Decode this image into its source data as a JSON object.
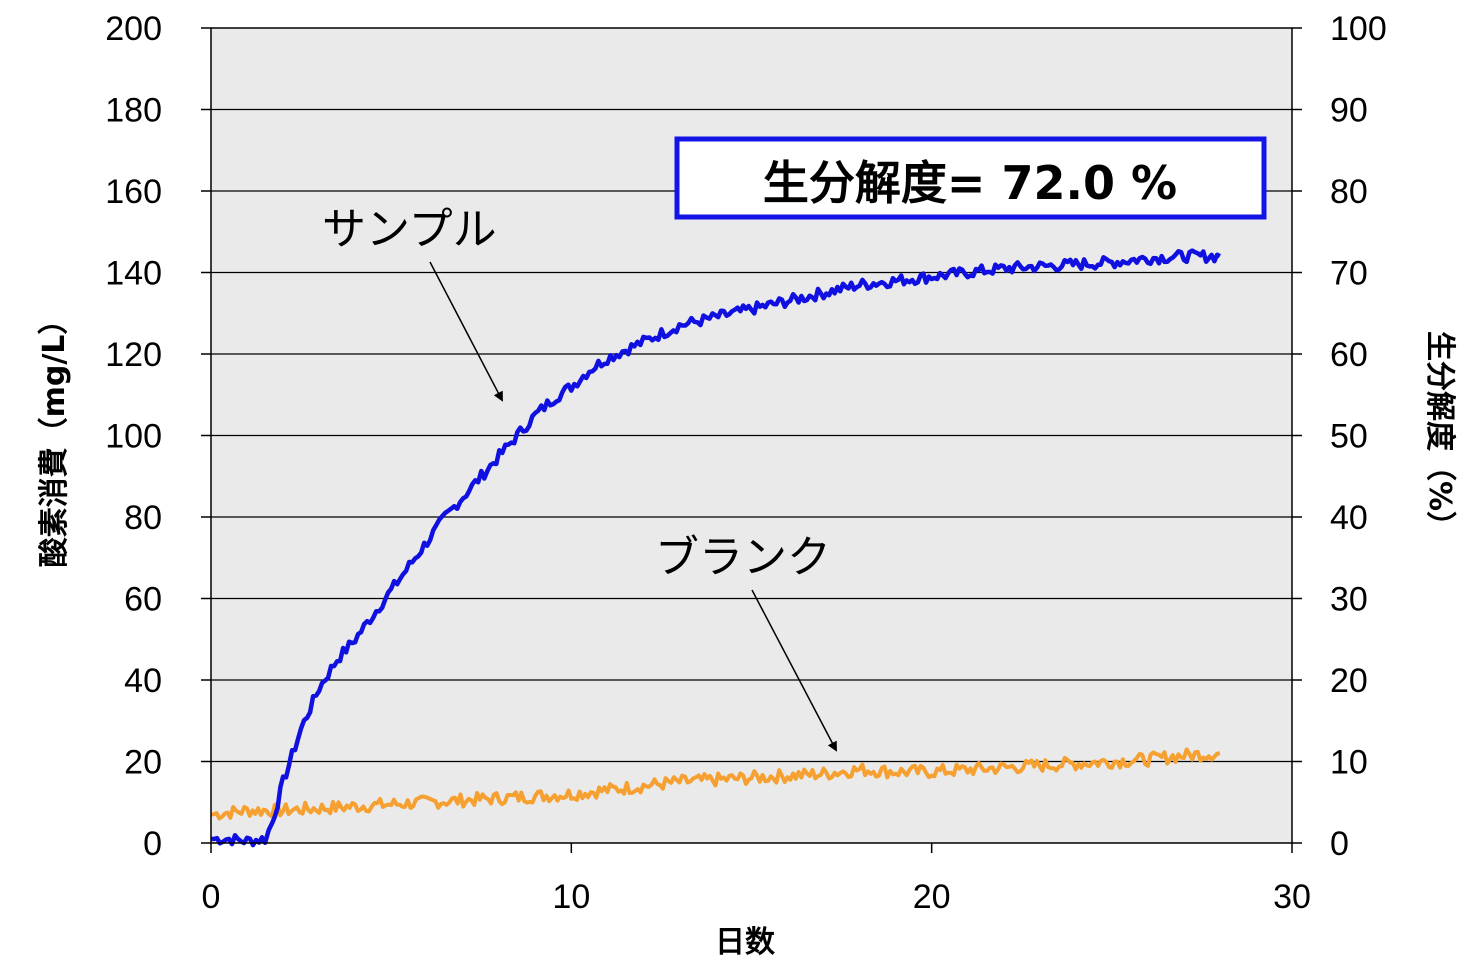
{
  "chart_data": {
    "type": "line",
    "xlabel": "日数",
    "ylabel": "酸素消費（mg/L）",
    "y2label": "生分解度（%）",
    "xlim": [
      0,
      30
    ],
    "ylim": [
      0,
      200
    ],
    "y2lim": [
      0,
      100
    ],
    "x_ticks": [
      0,
      10,
      20,
      30
    ],
    "y_ticks": [
      0,
      20,
      40,
      60,
      80,
      100,
      120,
      140,
      160,
      180,
      200
    ],
    "y2_ticks": [
      0,
      10,
      20,
      30,
      40,
      50,
      60,
      70,
      80,
      90,
      100
    ],
    "grid": "horizontal",
    "plot_background": "#eaeaea",
    "result_box": "生分解度= 72.0 %",
    "result_box_color": "#1414e6",
    "series": [
      {
        "name": "サンプル",
        "color": "#1010e0",
        "x": [
          0,
          0.5,
          1.0,
          1.5,
          1.7,
          2.0,
          2.5,
          3.0,
          3.5,
          4.0,
          4.5,
          5.0,
          5.5,
          6.0,
          6.5,
          7.0,
          7.5,
          8.0,
          8.5,
          9.0,
          9.5,
          10.0,
          10.5,
          11.0,
          11.5,
          12.0,
          12.5,
          13.0,
          13.5,
          14.0,
          15.0,
          16.0,
          17.0,
          18.0,
          19.0,
          20.0,
          21.0,
          22.0,
          23.0,
          24.0,
          25.0,
          26.0,
          27.0,
          28.0
        ],
        "values": [
          1,
          1,
          0.5,
          1,
          5,
          15,
          28,
          38,
          45,
          50,
          56,
          62,
          68,
          74,
          80,
          85,
          90,
          95,
          100,
          105,
          109,
          112,
          116,
          119,
          121,
          123,
          125,
          127,
          128,
          129,
          131,
          133,
          135,
          137,
          138,
          139,
          140,
          141,
          141.5,
          142,
          142.5,
          143.5,
          144,
          144
        ]
      },
      {
        "name": "ブランク",
        "color": "#f5a030",
        "x": [
          0,
          1,
          2,
          3,
          4,
          5,
          6,
          7,
          8,
          9,
          10,
          11,
          12,
          13,
          14,
          15,
          16,
          17,
          18,
          19,
          20,
          21,
          22,
          23,
          24,
          25,
          26,
          27,
          28
        ],
        "values": [
          7,
          8,
          8,
          8.5,
          9,
          9.5,
          10,
          10.5,
          11,
          11.5,
          12,
          13,
          14,
          15,
          15.5,
          16,
          16.5,
          17,
          18,
          17.5,
          17.5,
          18,
          18.5,
          19,
          19.5,
          20,
          20.5,
          21.5,
          22
        ]
      }
    ]
  }
}
